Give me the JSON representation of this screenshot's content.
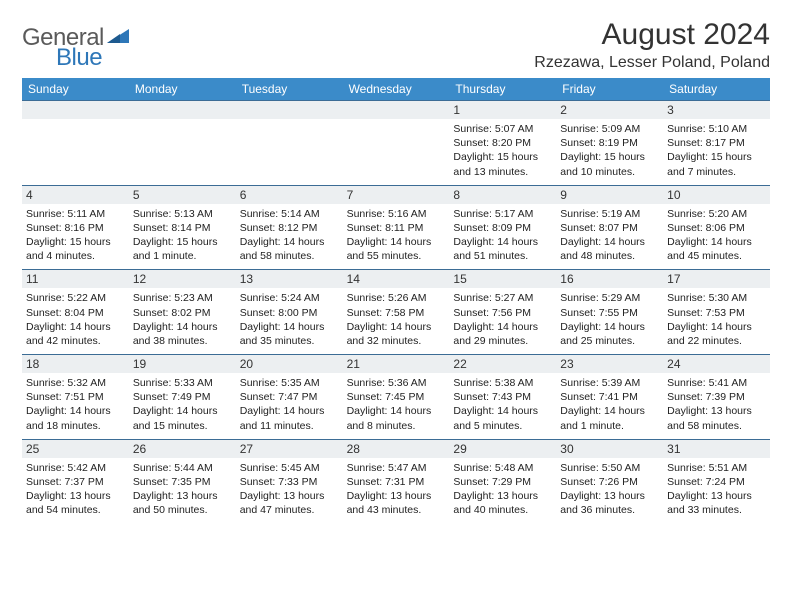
{
  "logo": {
    "text1": "General",
    "text2": "Blue"
  },
  "title": "August 2024",
  "location": "Rzezawa, Lesser Poland, Poland",
  "colors": {
    "header_bg": "#3b8bc9",
    "header_text": "#ffffff",
    "row_border": "#3b6c95",
    "daynum_bg": "#eceff1",
    "logo_gray": "#5a5a5a",
    "logo_blue": "#2e77b8"
  },
  "weekdays": [
    "Sunday",
    "Monday",
    "Tuesday",
    "Wednesday",
    "Thursday",
    "Friday",
    "Saturday"
  ],
  "weeks": [
    [
      {
        "n": "",
        "sunrise": "",
        "sunset": "",
        "daylight": ""
      },
      {
        "n": "",
        "sunrise": "",
        "sunset": "",
        "daylight": ""
      },
      {
        "n": "",
        "sunrise": "",
        "sunset": "",
        "daylight": ""
      },
      {
        "n": "",
        "sunrise": "",
        "sunset": "",
        "daylight": ""
      },
      {
        "n": "1",
        "sunrise": "Sunrise: 5:07 AM",
        "sunset": "Sunset: 8:20 PM",
        "daylight": "Daylight: 15 hours and 13 minutes."
      },
      {
        "n": "2",
        "sunrise": "Sunrise: 5:09 AM",
        "sunset": "Sunset: 8:19 PM",
        "daylight": "Daylight: 15 hours and 10 minutes."
      },
      {
        "n": "3",
        "sunrise": "Sunrise: 5:10 AM",
        "sunset": "Sunset: 8:17 PM",
        "daylight": "Daylight: 15 hours and 7 minutes."
      }
    ],
    [
      {
        "n": "4",
        "sunrise": "Sunrise: 5:11 AM",
        "sunset": "Sunset: 8:16 PM",
        "daylight": "Daylight: 15 hours and 4 minutes."
      },
      {
        "n": "5",
        "sunrise": "Sunrise: 5:13 AM",
        "sunset": "Sunset: 8:14 PM",
        "daylight": "Daylight: 15 hours and 1 minute."
      },
      {
        "n": "6",
        "sunrise": "Sunrise: 5:14 AM",
        "sunset": "Sunset: 8:12 PM",
        "daylight": "Daylight: 14 hours and 58 minutes."
      },
      {
        "n": "7",
        "sunrise": "Sunrise: 5:16 AM",
        "sunset": "Sunset: 8:11 PM",
        "daylight": "Daylight: 14 hours and 55 minutes."
      },
      {
        "n": "8",
        "sunrise": "Sunrise: 5:17 AM",
        "sunset": "Sunset: 8:09 PM",
        "daylight": "Daylight: 14 hours and 51 minutes."
      },
      {
        "n": "9",
        "sunrise": "Sunrise: 5:19 AM",
        "sunset": "Sunset: 8:07 PM",
        "daylight": "Daylight: 14 hours and 48 minutes."
      },
      {
        "n": "10",
        "sunrise": "Sunrise: 5:20 AM",
        "sunset": "Sunset: 8:06 PM",
        "daylight": "Daylight: 14 hours and 45 minutes."
      }
    ],
    [
      {
        "n": "11",
        "sunrise": "Sunrise: 5:22 AM",
        "sunset": "Sunset: 8:04 PM",
        "daylight": "Daylight: 14 hours and 42 minutes."
      },
      {
        "n": "12",
        "sunrise": "Sunrise: 5:23 AM",
        "sunset": "Sunset: 8:02 PM",
        "daylight": "Daylight: 14 hours and 38 minutes."
      },
      {
        "n": "13",
        "sunrise": "Sunrise: 5:24 AM",
        "sunset": "Sunset: 8:00 PM",
        "daylight": "Daylight: 14 hours and 35 minutes."
      },
      {
        "n": "14",
        "sunrise": "Sunrise: 5:26 AM",
        "sunset": "Sunset: 7:58 PM",
        "daylight": "Daylight: 14 hours and 32 minutes."
      },
      {
        "n": "15",
        "sunrise": "Sunrise: 5:27 AM",
        "sunset": "Sunset: 7:56 PM",
        "daylight": "Daylight: 14 hours and 29 minutes."
      },
      {
        "n": "16",
        "sunrise": "Sunrise: 5:29 AM",
        "sunset": "Sunset: 7:55 PM",
        "daylight": "Daylight: 14 hours and 25 minutes."
      },
      {
        "n": "17",
        "sunrise": "Sunrise: 5:30 AM",
        "sunset": "Sunset: 7:53 PM",
        "daylight": "Daylight: 14 hours and 22 minutes."
      }
    ],
    [
      {
        "n": "18",
        "sunrise": "Sunrise: 5:32 AM",
        "sunset": "Sunset: 7:51 PM",
        "daylight": "Daylight: 14 hours and 18 minutes."
      },
      {
        "n": "19",
        "sunrise": "Sunrise: 5:33 AM",
        "sunset": "Sunset: 7:49 PM",
        "daylight": "Daylight: 14 hours and 15 minutes."
      },
      {
        "n": "20",
        "sunrise": "Sunrise: 5:35 AM",
        "sunset": "Sunset: 7:47 PM",
        "daylight": "Daylight: 14 hours and 11 minutes."
      },
      {
        "n": "21",
        "sunrise": "Sunrise: 5:36 AM",
        "sunset": "Sunset: 7:45 PM",
        "daylight": "Daylight: 14 hours and 8 minutes."
      },
      {
        "n": "22",
        "sunrise": "Sunrise: 5:38 AM",
        "sunset": "Sunset: 7:43 PM",
        "daylight": "Daylight: 14 hours and 5 minutes."
      },
      {
        "n": "23",
        "sunrise": "Sunrise: 5:39 AM",
        "sunset": "Sunset: 7:41 PM",
        "daylight": "Daylight: 14 hours and 1 minute."
      },
      {
        "n": "24",
        "sunrise": "Sunrise: 5:41 AM",
        "sunset": "Sunset: 7:39 PM",
        "daylight": "Daylight: 13 hours and 58 minutes."
      }
    ],
    [
      {
        "n": "25",
        "sunrise": "Sunrise: 5:42 AM",
        "sunset": "Sunset: 7:37 PM",
        "daylight": "Daylight: 13 hours and 54 minutes."
      },
      {
        "n": "26",
        "sunrise": "Sunrise: 5:44 AM",
        "sunset": "Sunset: 7:35 PM",
        "daylight": "Daylight: 13 hours and 50 minutes."
      },
      {
        "n": "27",
        "sunrise": "Sunrise: 5:45 AM",
        "sunset": "Sunset: 7:33 PM",
        "daylight": "Daylight: 13 hours and 47 minutes."
      },
      {
        "n": "28",
        "sunrise": "Sunrise: 5:47 AM",
        "sunset": "Sunset: 7:31 PM",
        "daylight": "Daylight: 13 hours and 43 minutes."
      },
      {
        "n": "29",
        "sunrise": "Sunrise: 5:48 AM",
        "sunset": "Sunset: 7:29 PM",
        "daylight": "Daylight: 13 hours and 40 minutes."
      },
      {
        "n": "30",
        "sunrise": "Sunrise: 5:50 AM",
        "sunset": "Sunset: 7:26 PM",
        "daylight": "Daylight: 13 hours and 36 minutes."
      },
      {
        "n": "31",
        "sunrise": "Sunrise: 5:51 AM",
        "sunset": "Sunset: 7:24 PM",
        "daylight": "Daylight: 13 hours and 33 minutes."
      }
    ]
  ]
}
